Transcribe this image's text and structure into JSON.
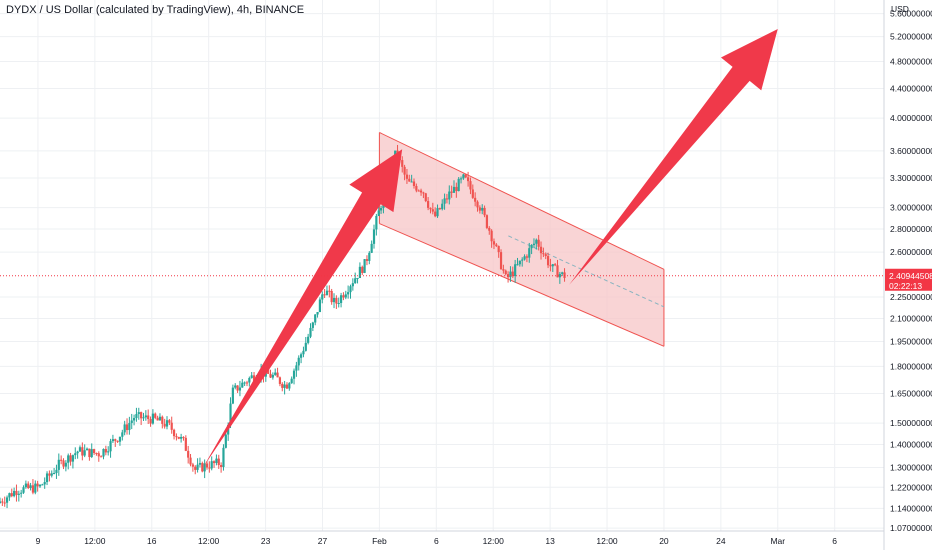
{
  "chart_data": {
    "type": "candlestick",
    "title": "DYDX / US Dollar (calculated by TradingView), 4h, BINANCE",
    "currency": "USD",
    "y_scale": "log",
    "ylim": [
      1.06,
      5.85
    ],
    "y_ticks": [
      "5.60000000",
      "5.20000000",
      "4.80000000",
      "4.40000000",
      "4.00000000",
      "3.60000000",
      "3.30000000",
      "3.00000000",
      "2.80000000",
      "2.60000000",
      "2.25000000",
      "2.10000000",
      "1.95000000",
      "1.80000000",
      "1.65000000",
      "1.50000000",
      "1.40000000",
      "1.30000000",
      "1.22000000",
      "1.14000000",
      "1.07000000"
    ],
    "x_ticks": [
      {
        "label": "9",
        "x": 0.5
      },
      {
        "label": "12:00",
        "x": 2.0
      },
      {
        "label": "16",
        "x": 3.5
      },
      {
        "label": "12:00",
        "x": 5.0
      },
      {
        "label": "23",
        "x": 6.5
      },
      {
        "label": "27",
        "x": 8.0
      },
      {
        "label": "Feb",
        "x": 9.5
      },
      {
        "label": "6",
        "x": 11.0
      },
      {
        "label": "12:00",
        "x": 12.5
      },
      {
        "label": "13",
        "x": 14.0
      },
      {
        "label": "12:00",
        "x": 15.5
      },
      {
        "label": "20",
        "x": 17.0
      },
      {
        "label": "24",
        "x": 18.5
      },
      {
        "label": "Mar",
        "x": 20.0
      },
      {
        "label": "6",
        "x": 21.5
      }
    ],
    "x_range": [
      -0.5,
      22.8
    ],
    "last_price": {
      "value": "2.40944508",
      "countdown": "02:22:13",
      "numeric": 2.4094
    },
    "path_points": [
      [
        -0.5,
        1.16
      ],
      [
        0,
        1.21
      ],
      [
        0.6,
        1.22
      ],
      [
        1.1,
        1.31
      ],
      [
        1.6,
        1.37
      ],
      [
        2.2,
        1.36
      ],
      [
        2.7,
        1.44
      ],
      [
        3.1,
        1.53
      ],
      [
        3.6,
        1.52
      ],
      [
        4.0,
        1.49
      ],
      [
        4.4,
        1.41
      ],
      [
        4.7,
        1.29
      ],
      [
        5.0,
        1.31
      ],
      [
        5.4,
        1.32
      ],
      [
        5.7,
        1.66
      ],
      [
        6.0,
        1.71
      ],
      [
        6.4,
        1.77
      ],
      [
        6.8,
        1.74
      ],
      [
        7.1,
        1.69
      ],
      [
        7.4,
        1.82
      ],
      [
        7.8,
        2.05
      ],
      [
        8.1,
        2.31
      ],
      [
        8.4,
        2.2
      ],
      [
        8.8,
        2.35
      ],
      [
        9.2,
        2.51
      ],
      [
        9.5,
        2.9
      ],
      [
        9.8,
        3.3
      ],
      [
        10.0,
        3.58
      ],
      [
        10.3,
        3.25
      ],
      [
        10.7,
        3.18
      ],
      [
        11.0,
        2.9
      ],
      [
        11.4,
        3.13
      ],
      [
        11.8,
        3.3
      ],
      [
        12.2,
        3.02
      ],
      [
        12.5,
        2.76
      ],
      [
        12.9,
        2.38
      ],
      [
        13.3,
        2.52
      ],
      [
        13.7,
        2.7
      ],
      [
        14.1,
        2.47
      ],
      [
        14.4,
        2.41
      ]
    ],
    "channel": {
      "x_start": 9.5,
      "x_end": 17.0,
      "upper": [
        3.82,
        2.46
      ],
      "lower": [
        2.85,
        1.92
      ],
      "mid": [
        3.31,
        2.18
      ],
      "mid_from_x": 12.9
    },
    "annotations": [
      {
        "type": "arrow",
        "from": [
          4.85,
          1.3
        ],
        "to": [
          10.1,
          3.62
        ]
      },
      {
        "type": "arrow",
        "from": [
          14.5,
          2.34
        ],
        "to": [
          20.0,
          5.33
        ]
      }
    ],
    "colors": {
      "up": "#26a69a",
      "down": "#ef5350",
      "channel_line": "#ef5350",
      "channel_fill": "#f7c5c7",
      "arrow": "#f0394a",
      "price_label": "#f23645",
      "grid": "#eef0f3",
      "axis_text": "#131722",
      "mid_dashed": "#8ab4c0"
    }
  }
}
